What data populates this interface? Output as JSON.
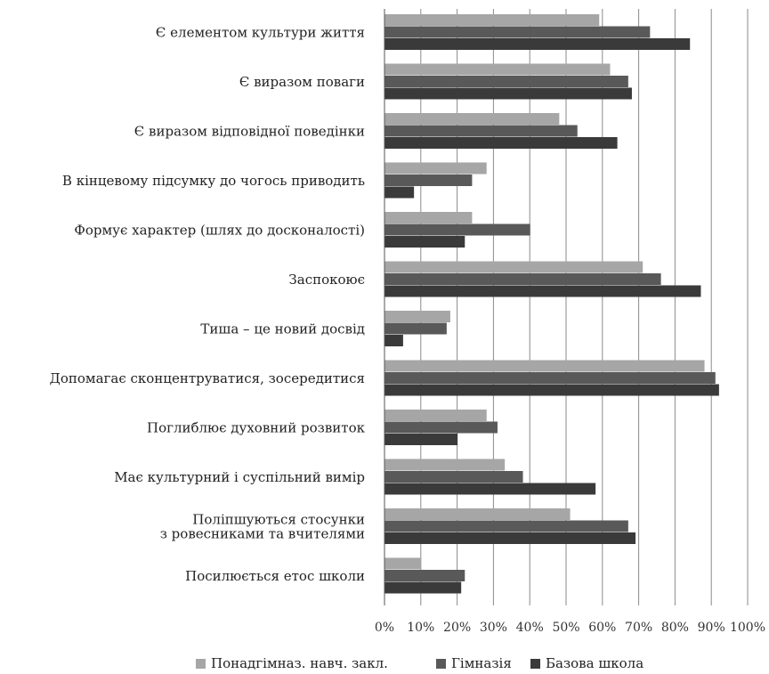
{
  "chart_data": {
    "type": "bar",
    "orientation": "horizontal",
    "categories": [
      [
        "Є елементом культури життя"
      ],
      [
        "Є виразом поваги"
      ],
      [
        "Є виразом відповідної поведінки"
      ],
      [
        "В кінцевому підсумку до чогось приводить"
      ],
      [
        "Формує характер (шлях до досконалості)"
      ],
      [
        "Заспокоює"
      ],
      [
        "Тиша – це новий досвід"
      ],
      [
        "Допомагає сконцентруватися, зосередитися"
      ],
      [
        "Поглиблює духовний розвиток"
      ],
      [
        "Має культурний і суспільний вимір"
      ],
      [
        "Поліпшуються стосунки",
        "з ровесниками та вчителями"
      ],
      [
        "Посилюється етос школи"
      ]
    ],
    "series": [
      {
        "name": "Понадгімназ. навч. закл.",
        "color": "#a6a6a6",
        "values": [
          59,
          62,
          48,
          28,
          24,
          71,
          18,
          88,
          28,
          33,
          51,
          10
        ]
      },
      {
        "name": "Гімназія",
        "color": "#595959",
        "values": [
          73,
          67,
          53,
          24,
          40,
          76,
          17,
          91,
          31,
          38,
          67,
          22
        ]
      },
      {
        "name": "Базова школа",
        "color": "#3a3a3a",
        "values": [
          84,
          68,
          64,
          8,
          22,
          87,
          5,
          92,
          20,
          58,
          69,
          21
        ]
      }
    ],
    "x_ticks": [
      "0%",
      "10%",
      "20%",
      "30%",
      "40%",
      "50%",
      "60%",
      "70%",
      "80%",
      "90%",
      "100%"
    ],
    "xlim": [
      0,
      100
    ],
    "grid": true,
    "legend_position": "bottom"
  }
}
